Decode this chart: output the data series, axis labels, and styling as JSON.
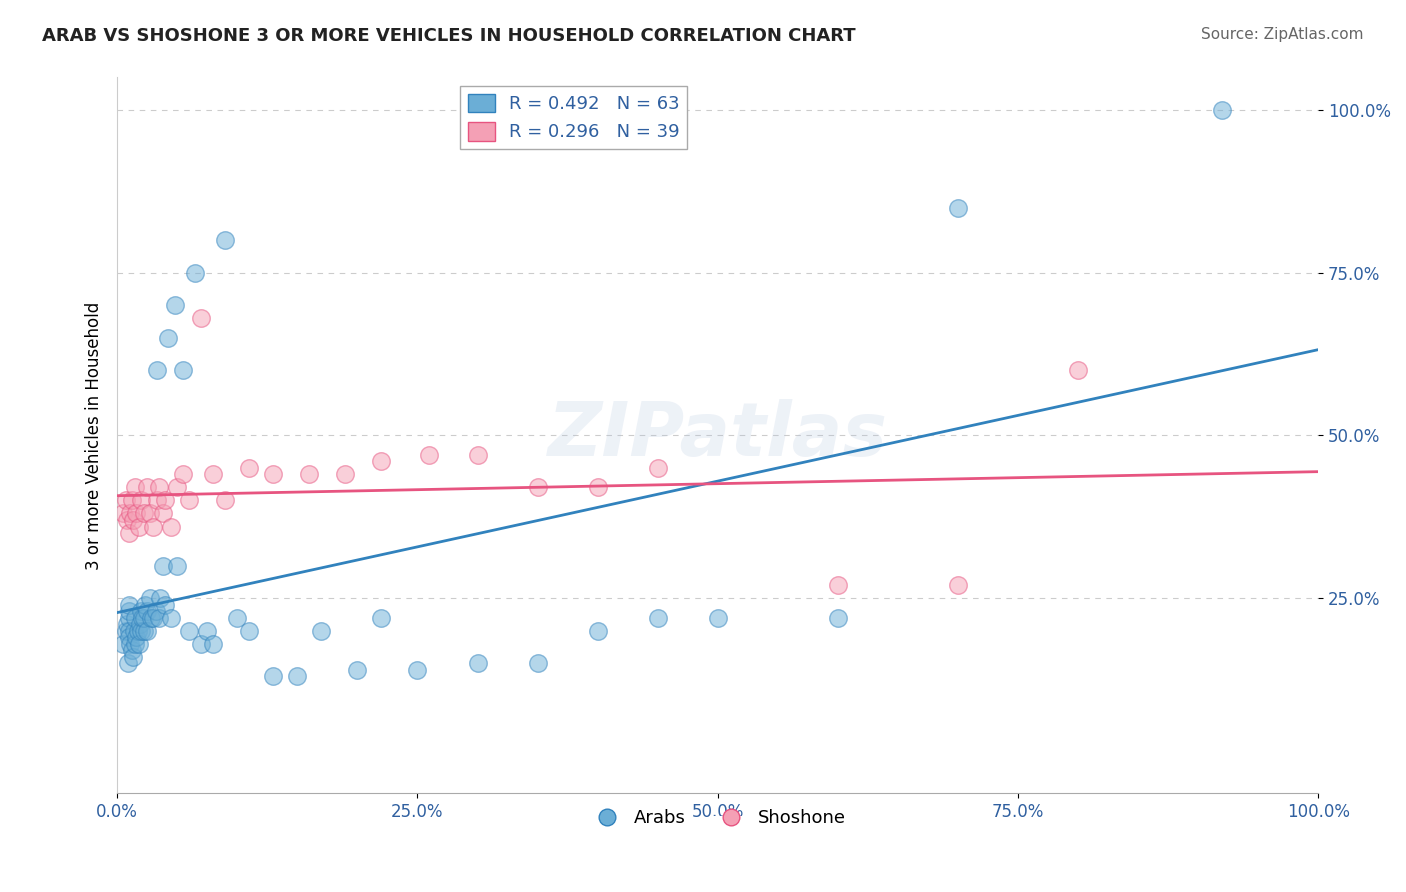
{
  "title": "ARAB VS SHOSHONE 3 OR MORE VEHICLES IN HOUSEHOLD CORRELATION CHART",
  "source": "Source: ZipAtlas.com",
  "ylabel": "3 or more Vehicles in Household",
  "xlim": [
    0.0,
    1.0
  ],
  "ylim": [
    -0.05,
    1.05
  ],
  "xtick_positions": [
    0.0,
    0.25,
    0.5,
    0.75,
    1.0
  ],
  "xtick_labels": [
    "0.0%",
    "25.0%",
    "50.0%",
    "75.0%",
    "100.0%"
  ],
  "ytick_positions": [
    0.25,
    0.5,
    0.75,
    1.0
  ],
  "ytick_labels": [
    "25.0%",
    "50.0%",
    "75.0%",
    "100.0%"
  ],
  "legend_entries": [
    {
      "label": "R = 0.492   N = 63",
      "color": "#6baed6",
      "edge": "#3182bd"
    },
    {
      "label": "R = 0.296   N = 39",
      "color": "#f4a0b5",
      "edge": "#e75480"
    }
  ],
  "watermark": "ZIPatlas",
  "arab_color": "#6baed6",
  "shoshone_color": "#f4a0b5",
  "arab_line_color": "#3182bd",
  "shoshone_line_color": "#e75480",
  "arab_x": [
    0.005,
    0.007,
    0.008,
    0.009,
    0.01,
    0.01,
    0.01,
    0.01,
    0.01,
    0.011,
    0.012,
    0.013,
    0.014,
    0.015,
    0.015,
    0.016,
    0.017,
    0.018,
    0.019,
    0.02,
    0.02,
    0.021,
    0.022,
    0.022,
    0.023,
    0.025,
    0.025,
    0.027,
    0.028,
    0.03,
    0.032,
    0.033,
    0.035,
    0.036,
    0.038,
    0.04,
    0.042,
    0.045,
    0.048,
    0.05,
    0.055,
    0.06,
    0.065,
    0.07,
    0.075,
    0.08,
    0.09,
    0.1,
    0.11,
    0.13,
    0.15,
    0.17,
    0.2,
    0.22,
    0.25,
    0.3,
    0.35,
    0.4,
    0.45,
    0.5,
    0.6,
    0.7,
    0.92
  ],
  "arab_y": [
    0.18,
    0.2,
    0.21,
    0.15,
    0.22,
    0.23,
    0.2,
    0.19,
    0.24,
    0.18,
    0.17,
    0.16,
    0.2,
    0.18,
    0.22,
    0.19,
    0.2,
    0.18,
    0.21,
    0.2,
    0.23,
    0.22,
    0.2,
    0.22,
    0.24,
    0.2,
    0.23,
    0.25,
    0.22,
    0.22,
    0.23,
    0.6,
    0.22,
    0.25,
    0.3,
    0.24,
    0.65,
    0.22,
    0.7,
    0.3,
    0.6,
    0.2,
    0.75,
    0.18,
    0.2,
    0.18,
    0.8,
    0.22,
    0.2,
    0.13,
    0.13,
    0.2,
    0.14,
    0.22,
    0.14,
    0.15,
    0.15,
    0.2,
    0.22,
    0.22,
    0.22,
    0.85,
    1.0
  ],
  "shoshone_x": [
    0.005,
    0.007,
    0.008,
    0.01,
    0.011,
    0.012,
    0.013,
    0.015,
    0.016,
    0.018,
    0.02,
    0.022,
    0.025,
    0.027,
    0.03,
    0.033,
    0.035,
    0.038,
    0.04,
    0.045,
    0.05,
    0.055,
    0.06,
    0.07,
    0.08,
    0.09,
    0.11,
    0.13,
    0.16,
    0.19,
    0.22,
    0.26,
    0.3,
    0.35,
    0.4,
    0.45,
    0.6,
    0.7,
    0.8
  ],
  "shoshone_y": [
    0.38,
    0.4,
    0.37,
    0.35,
    0.38,
    0.4,
    0.37,
    0.42,
    0.38,
    0.36,
    0.4,
    0.38,
    0.42,
    0.38,
    0.36,
    0.4,
    0.42,
    0.38,
    0.4,
    0.36,
    0.42,
    0.44,
    0.4,
    0.68,
    0.44,
    0.4,
    0.45,
    0.44,
    0.44,
    0.44,
    0.46,
    0.47,
    0.47,
    0.42,
    0.42,
    0.45,
    0.27,
    0.27,
    0.6
  ],
  "background_color": "#ffffff",
  "grid_color": "#cccccc"
}
